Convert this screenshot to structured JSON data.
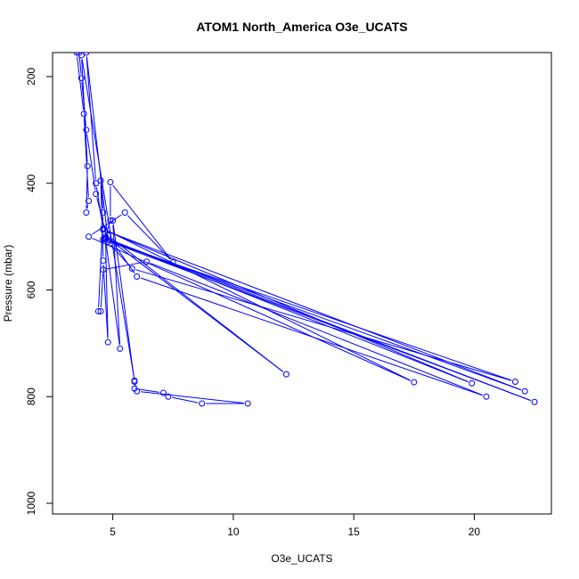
{
  "chart_data": {
    "type": "line",
    "title": "ATOM1 North_America O3e_UCATS",
    "xlabel": "O3e_UCATS",
    "ylabel": "Pressure (mbar)",
    "xlim": [
      2.5,
      23.2
    ],
    "ylim": [
      1020,
      155
    ],
    "y_reversed": true,
    "x_ticks": [
      5,
      10,
      15,
      20
    ],
    "y_ticks": [
      200,
      400,
      600,
      800,
      1000
    ],
    "grid": false,
    "legend": "none",
    "color": "#0000ff",
    "series": [
      {
        "points": [
          [
            3.6,
            155
          ],
          [
            3.7,
            203
          ],
          [
            3.9,
            300
          ],
          [
            4.3,
            420
          ],
          [
            4.8,
            510
          ],
          [
            5.8,
            560
          ],
          [
            21.7,
            772
          ],
          [
            4.6,
            505
          ],
          [
            22.5,
            810
          ],
          [
            4.7,
            503
          ],
          [
            19.9,
            775
          ],
          [
            4.6,
            487
          ],
          [
            22.1,
            790
          ],
          [
            4.8,
            507
          ],
          [
            3.9,
            155
          ],
          [
            4.3,
            400
          ],
          [
            4.6,
            485
          ],
          [
            17.5,
            773
          ],
          [
            4.0,
            500
          ],
          [
            5.5,
            455
          ],
          [
            7.5,
            548
          ],
          [
            4.9,
            398
          ],
          [
            4.9,
            470
          ],
          [
            4.7,
            500
          ],
          [
            12.2,
            758
          ],
          [
            4.8,
            498
          ],
          [
            6.0,
            575
          ],
          [
            20.5,
            800
          ],
          [
            6.4,
            547
          ],
          [
            4.6,
            562
          ],
          [
            4.5,
            640
          ],
          [
            4.4,
            640
          ],
          [
            4.6,
            455
          ],
          [
            4.5,
            395
          ],
          [
            4.6,
            545
          ],
          [
            4.8,
            698
          ],
          [
            4.7,
            505
          ],
          [
            5.3,
            710
          ],
          [
            5.0,
            470
          ],
          [
            5.9,
            772
          ],
          [
            5.9,
            785
          ],
          [
            7.1,
            793
          ],
          [
            7.3,
            800
          ],
          [
            8.7,
            813
          ],
          [
            10.6,
            813
          ],
          [
            6.0,
            790
          ],
          [
            5.9,
            770
          ],
          [
            3.7,
            160
          ],
          [
            3.95,
            368
          ],
          [
            3.9,
            455
          ],
          [
            4.0,
            433
          ],
          [
            3.8,
            270
          ],
          [
            3.5,
            155
          ]
        ]
      }
    ]
  }
}
